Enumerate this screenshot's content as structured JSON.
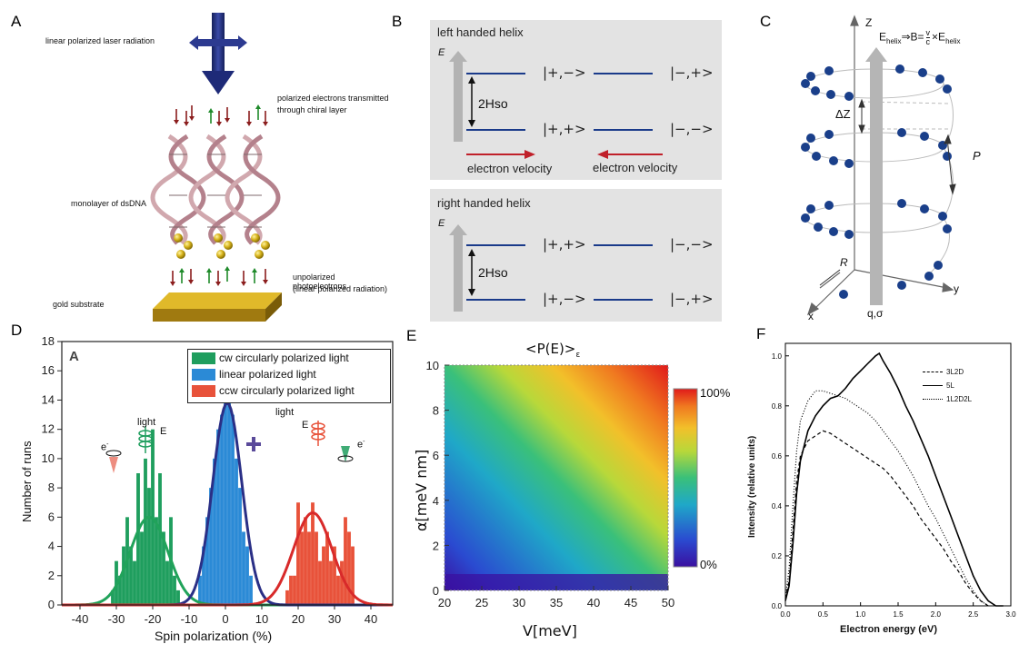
{
  "panel_labels": {
    "A": "A",
    "B": "B",
    "C": "C",
    "D": "D",
    "E": "E",
    "F": "F"
  },
  "panelA": {
    "laser": "linear polarized laser radiation",
    "transmitted": [
      "polarized electrons transmitted",
      "through chiral layer"
    ],
    "monolayer": "monolayer of dsDNA",
    "photoelectrons": [
      "unpolarized photoelectrons",
      "(linear polarized radiation)"
    ],
    "substrate": "gold substrate"
  },
  "panelB": {
    "left_title": "left handed helix",
    "right_title": "right handed helix",
    "energy_axis": "E",
    "gap_label": "2Hso",
    "left_levels": {
      "top_left": "|+,−>",
      "top_right": "|−,+>",
      "bottom_left": "|+,+>",
      "bottom_right": "|−,−>"
    },
    "right_levels": {
      "top_left": "|+,+>",
      "top_right": "|−,−>",
      "bottom_left": "|+,−>",
      "bottom_right": "|−,+>"
    },
    "velocity_label": "electron velocity",
    "arrow_color": "#c0202a"
  },
  "panelC": {
    "z_axis": "Z",
    "y_axis": "y",
    "x_axis": "x",
    "r_label": "R",
    "p_label": "P",
    "dz_label": "ΔZ",
    "charge_label": "q,σ",
    "equation_lhs": "E",
    "equation_lhs_sub": "helix",
    "equation_mid": "⇒B=",
    "equation_frac_num": "v",
    "equation_frac_den": "c",
    "equation_rhs": "×E",
    "equation_rhs_sub": "helix",
    "dot_color": "#1a3f8a"
  },
  "panelD_text": {
    "inner_label": "A",
    "light_left": "light",
    "light_mid": "light",
    "e_letter": "E",
    "electron": "e",
    "electron_sup": "-"
  },
  "panelE_text": {
    "title": "<P(E)>",
    "title_sub": "ε",
    "cbar_max": "100%",
    "cbar_min": "0%"
  },
  "chart_data": [
    {
      "panel": "D",
      "type": "bar",
      "title": "",
      "xlabel": "Spin polarization (%)",
      "ylabel": "Number of runs",
      "xlim": [
        -45,
        46
      ],
      "ylim": [
        0,
        18
      ],
      "xticks": [
        -40,
        -30,
        -20,
        -10,
        0,
        10,
        20,
        30,
        40
      ],
      "yticks": [
        0,
        2,
        4,
        6,
        8,
        10,
        12,
        14,
        16,
        18
      ],
      "legend": [
        "cw circularly polarized light",
        "linear polarized light",
        "ccw circularly polarized light"
      ],
      "legend_position": "top-right",
      "series": [
        {
          "name": "cw circularly polarized light",
          "color": "#1f9e5e",
          "bins": [
            -31,
            -30,
            -29,
            -28,
            -27,
            -26,
            -25,
            -24,
            -23,
            -22,
            -21,
            -20,
            -19,
            -18,
            -17,
            -16,
            -15,
            -14,
            -13
          ],
          "values": [
            1,
            3,
            2,
            4,
            6,
            4,
            3,
            9,
            5,
            10,
            8,
            12,
            6,
            9,
            5,
            3,
            6,
            2,
            1
          ]
        },
        {
          "name": "linear polarized light",
          "color": "#2b8ad6",
          "bins": [
            -7,
            -6,
            -5,
            -4,
            -3,
            -2,
            -1,
            0,
            1,
            2,
            3,
            4,
            5,
            6,
            7
          ],
          "values": [
            2,
            4,
            6,
            8,
            10,
            12,
            13,
            16,
            14,
            13,
            10,
            8,
            5,
            4,
            2
          ]
        },
        {
          "name": "ccw circularly polarized light",
          "color": "#e8523a",
          "bins": [
            17,
            18,
            19,
            20,
            21,
            22,
            23,
            24,
            25,
            26,
            27,
            28,
            29,
            30,
            31,
            32,
            33,
            34,
            35
          ],
          "values": [
            1,
            2,
            2,
            7,
            5,
            6,
            5,
            7,
            5,
            3,
            4,
            5,
            3,
            4,
            2,
            3,
            6,
            5,
            4
          ]
        }
      ],
      "fits": [
        {
          "center": -21,
          "sigma": 5.2,
          "peak": 6.0,
          "color": "#21a35a"
        },
        {
          "center": 0.5,
          "sigma": 4.0,
          "peak": 13.8,
          "color": "#2a2f86"
        },
        {
          "center": 24,
          "sigma": 5.3,
          "peak": 6.3,
          "color": "#d82a2a"
        }
      ]
    },
    {
      "panel": "E",
      "type": "heatmap",
      "title": "<P(E)>ε",
      "xlabel": "V[meV]",
      "ylabel": "α[meV nm]",
      "xlim": [
        20,
        50
      ],
      "ylim": [
        0,
        10
      ],
      "xticks": [
        20,
        25,
        30,
        35,
        40,
        45,
        50
      ],
      "yticks": [
        0,
        2,
        4,
        6,
        8,
        10
      ],
      "colorbar": {
        "min": "0%",
        "max": "100%"
      }
    },
    {
      "panel": "F",
      "type": "line",
      "xlabel": "Electron energy (eV)",
      "ylabel": "Intensity (relative units)",
      "xlim": [
        0,
        3.0
      ],
      "ylim": [
        0,
        1.05
      ],
      "xticks": [
        0.0,
        0.5,
        1.0,
        1.5,
        2.0,
        2.5,
        3.0
      ],
      "yticks": [
        0.0,
        0.2,
        0.4,
        0.6,
        0.8,
        1.0
      ],
      "legend_position": "top-right",
      "series": [
        {
          "name": "3L2D",
          "style": "dashed",
          "x": [
            0.0,
            0.05,
            0.1,
            0.15,
            0.2,
            0.3,
            0.4,
            0.5,
            0.6,
            0.7,
            0.8,
            0.9,
            1.0,
            1.1,
            1.2,
            1.3,
            1.4,
            1.5,
            1.6,
            1.7,
            1.8,
            1.9,
            2.0,
            2.1,
            2.2,
            2.3,
            2.4,
            2.5,
            2.6,
            2.65,
            2.7
          ],
          "y": [
            0.03,
            0.1,
            0.3,
            0.5,
            0.6,
            0.66,
            0.68,
            0.7,
            0.69,
            0.67,
            0.65,
            0.63,
            0.61,
            0.59,
            0.57,
            0.55,
            0.52,
            0.48,
            0.44,
            0.4,
            0.35,
            0.31,
            0.27,
            0.23,
            0.18,
            0.14,
            0.09,
            0.05,
            0.02,
            0.01,
            0.0
          ]
        },
        {
          "name": "5L",
          "style": "solid",
          "x": [
            0.0,
            0.05,
            0.1,
            0.15,
            0.2,
            0.3,
            0.4,
            0.5,
            0.6,
            0.7,
            0.8,
            0.9,
            1.0,
            1.1,
            1.2,
            1.25,
            1.3,
            1.4,
            1.5,
            1.6,
            1.7,
            1.8,
            1.9,
            2.0,
            2.1,
            2.2,
            2.3,
            2.4,
            2.5,
            2.6,
            2.7,
            2.8,
            2.9
          ],
          "y": [
            0.02,
            0.08,
            0.25,
            0.45,
            0.58,
            0.7,
            0.76,
            0.8,
            0.83,
            0.84,
            0.87,
            0.91,
            0.94,
            0.97,
            1.0,
            1.01,
            0.98,
            0.93,
            0.87,
            0.8,
            0.74,
            0.67,
            0.6,
            0.52,
            0.44,
            0.36,
            0.28,
            0.2,
            0.12,
            0.06,
            0.02,
            0.0,
            0.0
          ]
        },
        {
          "name": "1L2D2L",
          "style": "dotted",
          "x": [
            0.0,
            0.05,
            0.1,
            0.15,
            0.2,
            0.3,
            0.4,
            0.5,
            0.6,
            0.7,
            0.8,
            0.9,
            1.0,
            1.1,
            1.2,
            1.3,
            1.4,
            1.5,
            1.6,
            1.7,
            1.8,
            1.9,
            2.0,
            2.1,
            2.2,
            2.3,
            2.4,
            2.5,
            2.6,
            2.7
          ],
          "y": [
            0.03,
            0.15,
            0.4,
            0.62,
            0.74,
            0.82,
            0.86,
            0.86,
            0.85,
            0.84,
            0.83,
            0.81,
            0.79,
            0.77,
            0.74,
            0.7,
            0.66,
            0.62,
            0.57,
            0.52,
            0.46,
            0.4,
            0.35,
            0.29,
            0.23,
            0.17,
            0.11,
            0.06,
            0.02,
            0.0
          ]
        }
      ]
    }
  ]
}
